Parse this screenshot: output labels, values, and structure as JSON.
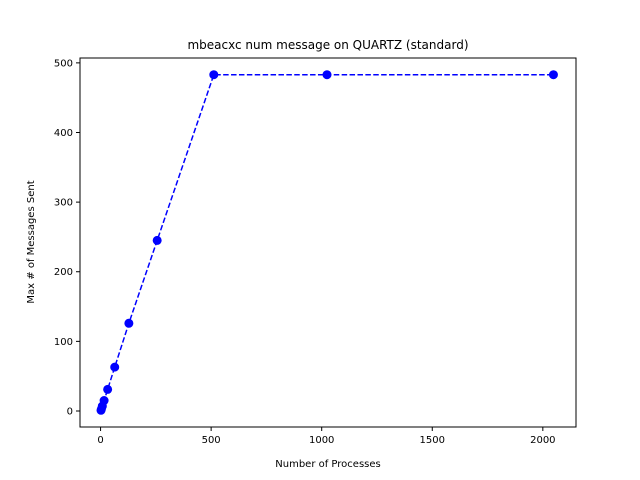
{
  "chart_data": {
    "type": "line",
    "title": "mbeacxc num message on QUARTZ (standard)",
    "xlabel": "Number of Processes",
    "ylabel": "Max # of Messages Sent",
    "xlim": [
      -93,
      2150
    ],
    "ylim": [
      -23,
      507
    ],
    "xticks": [
      0,
      500,
      1000,
      1500,
      2000
    ],
    "yticks": [
      0,
      100,
      200,
      300,
      400,
      500
    ],
    "grid": false,
    "series": [
      {
        "color": "#0000ff",
        "line_style": "dashed",
        "marker": "circle",
        "x": [
          2,
          4,
          8,
          16,
          32,
          64,
          128,
          256,
          512,
          1024,
          2048
        ],
        "y": [
          1,
          3,
          7,
          15,
          31,
          63,
          126,
          245,
          483,
          483,
          483
        ]
      }
    ]
  }
}
